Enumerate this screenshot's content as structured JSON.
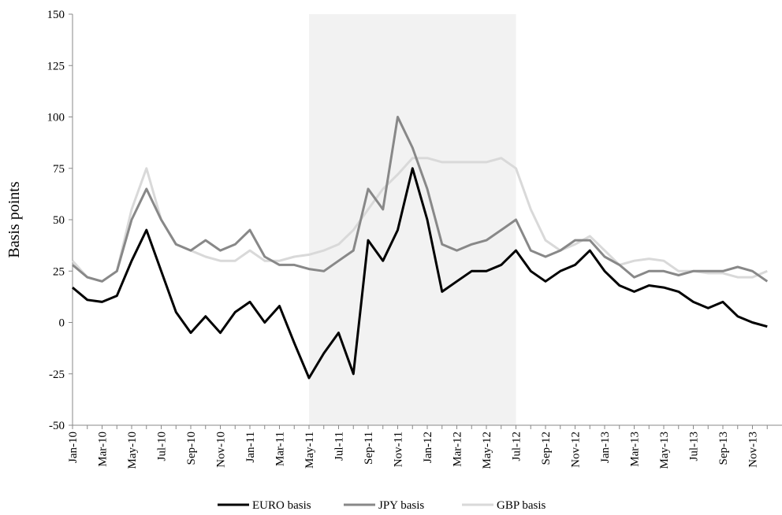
{
  "chart_data": {
    "type": "line",
    "y_label": "Basis points",
    "categories": [
      "Jan-10",
      null,
      "Mar-10",
      null,
      "May-10",
      null,
      "Jul-10",
      null,
      "Sep-10",
      null,
      "Nov-10",
      null,
      "Jan-11",
      null,
      "Mar-11",
      null,
      "May-11",
      null,
      "Jul-11",
      null,
      "Sep-11",
      null,
      "Nov-11",
      null,
      "Jan-12",
      null,
      "Mar-12",
      null,
      "May-12",
      null,
      "Jul-12",
      null,
      "Sep-12",
      null,
      "Nov-12",
      null,
      "Jan-13",
      null,
      "Mar-13",
      null,
      "May-13",
      null,
      "Jul-13",
      null,
      "Sep-13",
      null,
      "Nov-13",
      null
    ],
    "series": [
      {
        "name": "EURO basis",
        "color": "#000000",
        "values": [
          17,
          11,
          10,
          13,
          30,
          45,
          25,
          5,
          -5,
          3,
          -5,
          5,
          10,
          0,
          8,
          -10,
          -27,
          -15,
          -5,
          -25,
          40,
          30,
          45,
          75,
          50,
          15,
          20,
          25,
          25,
          28,
          35,
          25,
          20,
          25,
          28,
          35,
          25,
          18,
          15,
          18,
          17,
          15,
          10,
          7,
          10,
          3,
          0,
          -2
        ]
      },
      {
        "name": "JPY basis",
        "color": "#888888",
        "values": [
          28,
          22,
          20,
          25,
          50,
          65,
          50,
          38,
          35,
          40,
          35,
          38,
          45,
          32,
          28,
          28,
          26,
          25,
          30,
          35,
          65,
          55,
          100,
          85,
          65,
          38,
          35,
          38,
          40,
          45,
          50,
          35,
          32,
          35,
          40,
          40,
          32,
          28,
          22,
          25,
          25,
          23,
          25,
          25,
          25,
          27,
          25,
          20
        ]
      },
      {
        "name": "GBP basis",
        "color": "#d9d9d9",
        "values": [
          30,
          22,
          20,
          25,
          55,
          75,
          50,
          38,
          35,
          32,
          30,
          30,
          35,
          30,
          30,
          32,
          33,
          35,
          38,
          45,
          55,
          65,
          72,
          80,
          80,
          78,
          78,
          78,
          78,
          80,
          75,
          55,
          40,
          35,
          38,
          42,
          35,
          28,
          30,
          31,
          30,
          25,
          25,
          24,
          24,
          22,
          22,
          25
        ]
      }
    ],
    "highlight": {
      "from": "May-11",
      "to": "Jul-12",
      "color": "#f2f2f2"
    },
    "ylim": [
      -50,
      150
    ],
    "yticks": [
      -50,
      -25,
      0,
      25,
      50,
      75,
      100,
      125,
      150
    ],
    "legend": "bottom"
  }
}
